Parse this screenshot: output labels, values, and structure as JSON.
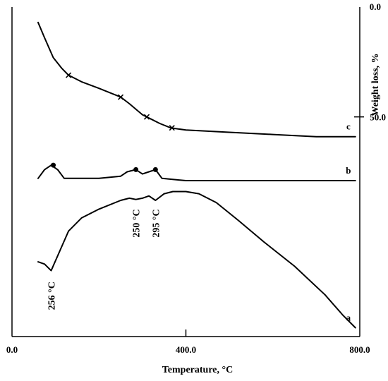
{
  "chart_data": {
    "type": "line",
    "xlabel": "Temperature, °C",
    "ylabel": "Weight loss, %",
    "xlim": [
      0.0,
      800.0
    ],
    "x_ticks": [
      {
        "value": 0,
        "label": "0.0"
      },
      {
        "value": 400,
        "label": "400.0"
      },
      {
        "value": 800,
        "label": "800.0"
      }
    ],
    "y_ticks_right": [
      {
        "value": 0,
        "label": "0.0"
      },
      {
        "value": 50,
        "label": "50.0"
      }
    ],
    "series": [
      {
        "name": "c",
        "marker": "x",
        "points": [
          [
            60,
            7
          ],
          [
            75,
            14
          ],
          [
            95,
            23
          ],
          [
            115,
            28
          ],
          [
            130,
            31
          ],
          [
            160,
            34
          ],
          [
            200,
            37
          ],
          [
            250,
            41
          ],
          [
            270,
            44
          ],
          [
            300,
            49
          ],
          [
            320,
            51
          ],
          [
            340,
            53
          ],
          [
            365,
            55
          ],
          [
            400,
            56
          ],
          [
            500,
            57
          ],
          [
            600,
            58
          ],
          [
            700,
            59
          ],
          [
            790,
            59
          ]
        ],
        "marked": [
          [
            130,
            31
          ],
          [
            250,
            41
          ],
          [
            310,
            50
          ],
          [
            368,
            55
          ]
        ]
      },
      {
        "name": "b",
        "marker": "dot",
        "points": [
          [
            60,
            78
          ],
          [
            75,
            74
          ],
          [
            90,
            72
          ],
          [
            105,
            74
          ],
          [
            120,
            78
          ],
          [
            150,
            78
          ],
          [
            200,
            78
          ],
          [
            250,
            77
          ],
          [
            265,
            75
          ],
          [
            285,
            74
          ],
          [
            300,
            76
          ],
          [
            315,
            75
          ],
          [
            330,
            74
          ],
          [
            345,
            78
          ],
          [
            400,
            79
          ],
          [
            500,
            79
          ],
          [
            600,
            79
          ],
          [
            700,
            79
          ],
          [
            790,
            79
          ]
        ],
        "marked": [
          [
            95,
            72
          ],
          [
            285,
            74
          ],
          [
            330,
            74
          ]
        ]
      },
      {
        "name": "a",
        "marker": "none",
        "points": [
          [
            60,
            116
          ],
          [
            75,
            117
          ],
          [
            90,
            120
          ],
          [
            110,
            111
          ],
          [
            130,
            102
          ],
          [
            160,
            96
          ],
          [
            200,
            92
          ],
          [
            250,
            88
          ],
          [
            270,
            87
          ],
          [
            285,
            87.6
          ],
          [
            300,
            87
          ],
          [
            315,
            86
          ],
          [
            330,
            88
          ],
          [
            350,
            85
          ],
          [
            370,
            84
          ],
          [
            400,
            84
          ],
          [
            430,
            85
          ],
          [
            470,
            89
          ],
          [
            520,
            97
          ],
          [
            580,
            107
          ],
          [
            650,
            118
          ],
          [
            720,
            131
          ],
          [
            760,
            140
          ],
          [
            790,
            146
          ]
        ]
      }
    ],
    "annotations": [
      {
        "text": "256 °C",
        "x": 90,
        "y": 125,
        "rotation": -90
      },
      {
        "text": "250 °C",
        "x": 285,
        "y": 92,
        "rotation": -90
      },
      {
        "text": "295 °C",
        "x": 330,
        "y": 92,
        "rotation": -90
      }
    ]
  }
}
